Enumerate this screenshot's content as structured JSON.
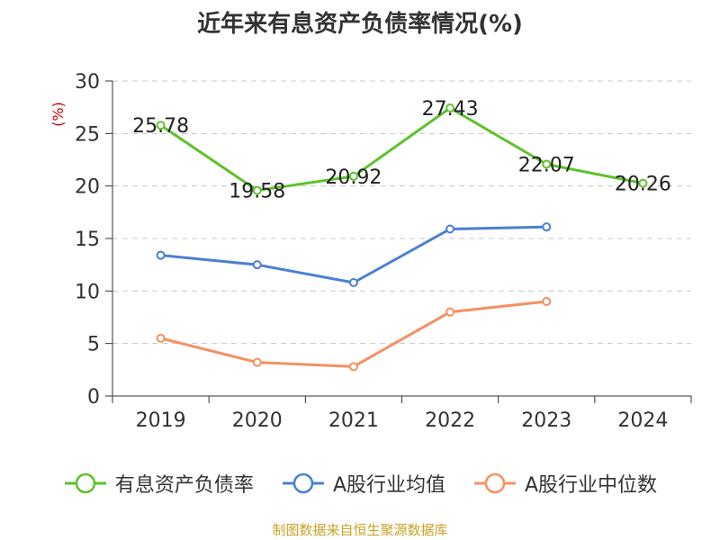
{
  "chart_data": {
    "type": "line",
    "title": "近年来有息资产负债率情况(%)",
    "ylabel": "(%)",
    "categories": [
      "2019",
      "2020",
      "2021",
      "2022",
      "2023",
      "2024"
    ],
    "ylim": [
      0,
      30
    ],
    "yticks": [
      "0",
      "5",
      "10",
      "15",
      "20",
      "25",
      "30"
    ],
    "grid": true,
    "legend_position": "bottom",
    "series": [
      {
        "name": "有息资产负债率",
        "color": "#5cc22a",
        "values": [
          25.78,
          19.58,
          20.92,
          27.43,
          22.07,
          20.26
        ],
        "labels": [
          "25.78",
          "19.58",
          "20.92",
          "27.43",
          "22.07",
          "20.26"
        ]
      },
      {
        "name": "A股行业均值",
        "color": "#4a7fd6",
        "values": [
          13.4,
          12.5,
          10.8,
          15.9,
          16.1,
          null
        ]
      },
      {
        "name": "A股行业中位数",
        "color": "#f59060",
        "values": [
          5.5,
          3.2,
          2.8,
          8.0,
          9.0,
          null
        ]
      }
    ]
  },
  "ylabel_color": "#cc0000",
  "source_note": "制图数据来自恒生聚源数据库"
}
